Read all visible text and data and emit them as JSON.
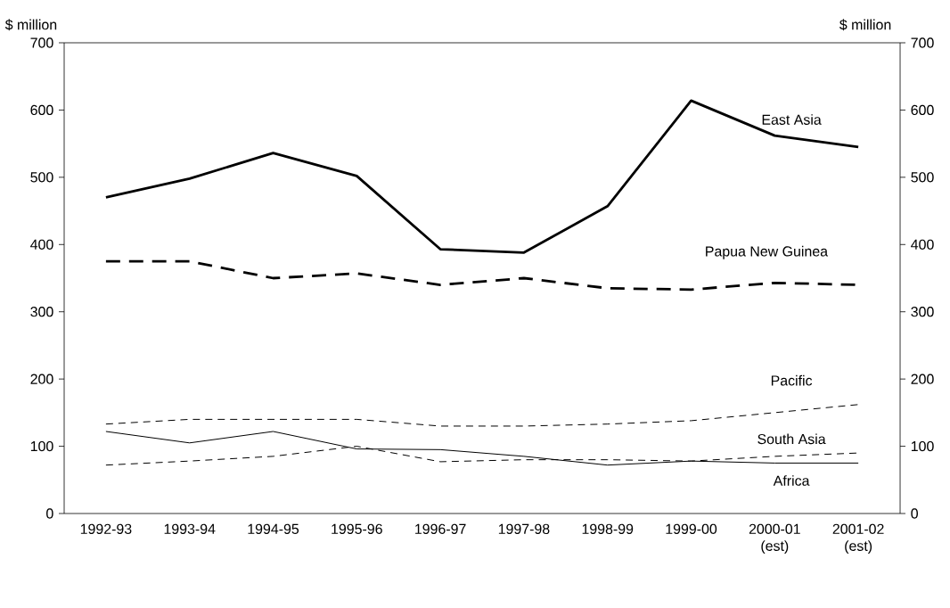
{
  "chart_data": {
    "type": "line",
    "ylabel": "$ million",
    "y2label": "$ million",
    "categories": [
      "1992-93",
      "1993-94",
      "1994-95",
      "1995-96",
      "1996-97",
      "1997-98",
      "1998-99",
      "1999-00",
      "2000-01 (est)",
      "2001-02 (est)"
    ],
    "series": [
      {
        "name": "East Asia",
        "color": "#000000",
        "line_style": "solid",
        "values": [
          470,
          498,
          536,
          502,
          393,
          388,
          457,
          614,
          562,
          545
        ]
      },
      {
        "name": "Papua New Guinea",
        "color": "#000000",
        "line_style": "dashed",
        "values": [
          375,
          375,
          350,
          357,
          340,
          350,
          335,
          333,
          343,
          340
        ]
      },
      {
        "name": "Pacific",
        "color": "#000000",
        "line_style": "dashed",
        "values": [
          133,
          140,
          140,
          140,
          130,
          130,
          133,
          138,
          150,
          162
        ]
      },
      {
        "name": "South Asia",
        "color": "#000000",
        "line_style": "dashed",
        "values": [
          72,
          78,
          85,
          100,
          77,
          80,
          80,
          78,
          85,
          90
        ]
      },
      {
        "name": "Africa",
        "color": "#000000",
        "line_style": "solid",
        "values": [
          122,
          105,
          122,
          96,
          95,
          85,
          72,
          78,
          75,
          75
        ]
      }
    ],
    "ylim": [
      0,
      700
    ],
    "yticks": [
      0,
      100,
      200,
      300,
      400,
      500,
      600,
      700
    ],
    "y2lim": [
      0,
      700
    ],
    "y2ticks": [
      0,
      100,
      200,
      300,
      400,
      500,
      600,
      700
    ],
    "grid": false,
    "legend": false,
    "marker": "none"
  }
}
